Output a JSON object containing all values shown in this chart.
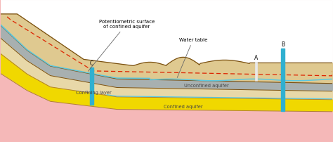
{
  "figsize": [
    4.74,
    2.03
  ],
  "dpi": 100,
  "bg_color": "#fbc8c8",
  "border_color": "#999999",
  "layers": {
    "white_top": "#ffffff",
    "pink_bg": "#f5b8b8",
    "tan_surface": "#dfc990",
    "tan_light": "#e8d8a8",
    "gray_confining": "#a8b0b0",
    "yellow_aquifer": "#f0d800",
    "dark_brown": "#7a5010",
    "mid_brown": "#b08030"
  },
  "text": {
    "potentiometric_label": "Potentiometric surface\nof confined aquifer",
    "water_table_label": "Water table",
    "confining_layer_label": "Confining layer",
    "unconfined_label": "Unconfined aquifer",
    "confined_label": "Confined aquifer",
    "well_c": "C",
    "well_a": "A",
    "well_b": "B"
  },
  "colors": {
    "water_blue": "#5ac8e0",
    "potentiometric_red": "#dd2200",
    "well_cyan": "#30b0d0",
    "well_white": "#e8e8e8",
    "arrow_gray": "#888888",
    "brown_line": "#7a5010",
    "tan_line": "#b09040"
  }
}
